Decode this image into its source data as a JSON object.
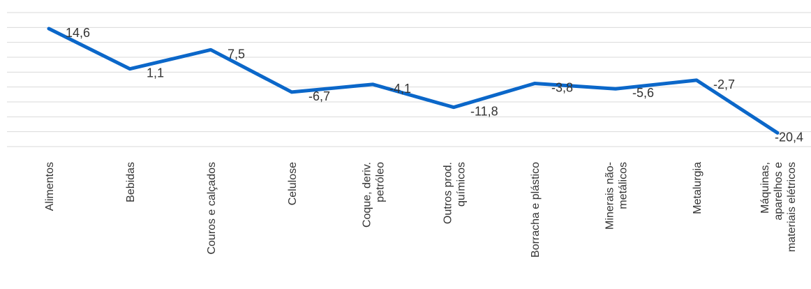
{
  "chart_data": {
    "type": "line",
    "categories": [
      [
        "Alimentos"
      ],
      [
        "Bebidas"
      ],
      [
        "Couros e calçados"
      ],
      [
        "Celulose"
      ],
      [
        "Coque, deriv.",
        "petróleo"
      ],
      [
        "Outros prod.",
        "químicos"
      ],
      [
        "Borracha e plástico"
      ],
      [
        "Minerais não-",
        "metálicos"
      ],
      [
        "Metalurgia"
      ],
      [
        "Máquinas,",
        "aparelhos e",
        "materiais elétricos"
      ]
    ],
    "series": [
      {
        "values": [
          14.6,
          1.1,
          7.5,
          -6.7,
          -4.1,
          -11.8,
          -3.8,
          -5.6,
          -2.7,
          -20.4
        ],
        "labels": [
          "14,6",
          "1,1",
          "7,5",
          "-6,7",
          "-4,1",
          "-11,8",
          "-3,8",
          "-5,6",
          "-2,7",
          "-20,4"
        ],
        "color": "#0b67c9"
      }
    ],
    "ylim": [
      -25,
      20
    ],
    "gridlines": [
      20,
      15,
      10,
      5,
      0,
      -5,
      -10,
      -15,
      -20,
      -25
    ],
    "grid": true,
    "legend": "none",
    "title": "",
    "xlabel": "",
    "ylabel": ""
  }
}
